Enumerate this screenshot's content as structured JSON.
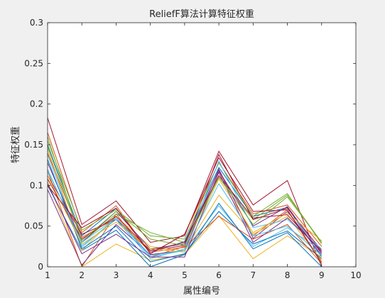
{
  "chart_data": {
    "type": "line",
    "title": "ReliefF算法计算特征权重",
    "xlabel": "属性编号",
    "ylabel": "特征权重",
    "xlim": [
      1,
      10
    ],
    "ylim": [
      0,
      0.3
    ],
    "xticks": [
      "1",
      "2",
      "3",
      "4",
      "5",
      "6",
      "7",
      "8",
      "9",
      "10"
    ],
    "yticks": [
      "0",
      "0.05",
      "0.1",
      "0.15",
      "0.2",
      "0.25",
      "0.3"
    ],
    "grid": false,
    "legend": "none",
    "x": [
      1,
      2,
      3,
      4,
      5,
      6,
      7,
      8,
      9
    ],
    "series": [
      {
        "color": "#A2142F",
        "values": [
          0.183,
          0.052,
          0.081,
          0.03,
          0.038,
          0.142,
          0.076,
          0.106,
          0.0
        ]
      },
      {
        "color": "#0072BD",
        "values": [
          0.15,
          0.038,
          0.072,
          0.018,
          0.031,
          0.122,
          0.062,
          0.073,
          0.012
        ]
      },
      {
        "color": "#D95319",
        "values": [
          0.118,
          0.0,
          0.065,
          0.012,
          0.025,
          0.118,
          0.038,
          0.07,
          0.006
        ]
      },
      {
        "color": "#EDB120",
        "values": [
          0.105,
          0.0,
          0.028,
          0.008,
          0.015,
          0.063,
          0.01,
          0.038,
          0.012
        ]
      },
      {
        "color": "#7E2F8E",
        "values": [
          0.095,
          0.002,
          0.052,
          0.015,
          0.02,
          0.12,
          0.035,
          0.068,
          0.014
        ]
      },
      {
        "color": "#77AC30",
        "values": [
          0.16,
          0.03,
          0.065,
          0.042,
          0.03,
          0.11,
          0.058,
          0.088,
          0.03
        ]
      },
      {
        "color": "#4DBEEE",
        "values": [
          0.138,
          0.024,
          0.06,
          0.012,
          0.02,
          0.075,
          0.025,
          0.048,
          0.02
        ]
      },
      {
        "color": "#A2142F",
        "values": [
          0.112,
          0.04,
          0.058,
          0.02,
          0.026,
          0.138,
          0.058,
          0.072,
          0.02
        ]
      },
      {
        "color": "#0072BD",
        "values": [
          0.1,
          0.02,
          0.045,
          0.0,
          0.015,
          0.078,
          0.022,
          0.042,
          0.0
        ]
      },
      {
        "color": "#D95319",
        "values": [
          0.165,
          0.042,
          0.075,
          0.016,
          0.04,
          0.128,
          0.065,
          0.076,
          0.025
        ]
      },
      {
        "color": "#EDB120",
        "values": [
          0.145,
          0.02,
          0.062,
          0.025,
          0.02,
          0.088,
          0.04,
          0.062,
          0.008
        ]
      },
      {
        "color": "#7E2F8E",
        "values": [
          0.128,
          0.03,
          0.068,
          0.022,
          0.028,
          0.118,
          0.05,
          0.074,
          0.016
        ]
      },
      {
        "color": "#77AC30",
        "values": [
          0.155,
          0.045,
          0.07,
          0.038,
          0.034,
          0.128,
          0.062,
          0.09,
          0.028
        ]
      },
      {
        "color": "#4DBEEE",
        "values": [
          0.12,
          0.026,
          0.058,
          0.01,
          0.022,
          0.13,
          0.048,
          0.058,
          0.022
        ]
      },
      {
        "color": "#A2142F",
        "values": [
          0.108,
          0.034,
          0.062,
          0.02,
          0.03,
          0.112,
          0.06,
          0.064,
          0.018
        ]
      },
      {
        "color": "#0072BD",
        "values": [
          0.132,
          0.022,
          0.05,
          0.006,
          0.016,
          0.068,
          0.028,
          0.044,
          0.01
        ]
      },
      {
        "color": "#D95319",
        "values": [
          0.14,
          0.036,
          0.06,
          0.018,
          0.024,
          0.062,
          0.034,
          0.052,
          0.004
        ]
      },
      {
        "color": "#EDB120",
        "values": [
          0.112,
          0.028,
          0.055,
          0.022,
          0.018,
          0.108,
          0.042,
          0.066,
          0.032
        ]
      },
      {
        "color": "#7E2F8E",
        "values": [
          0.102,
          0.016,
          0.04,
          0.012,
          0.012,
          0.116,
          0.03,
          0.06,
          0.02
        ]
      },
      {
        "color": "#77AC30",
        "values": [
          0.148,
          0.032,
          0.068,
          0.034,
          0.026,
          0.11,
          0.052,
          0.086,
          0.03
        ]
      },
      {
        "color": "#4DBEEE",
        "values": [
          0.118,
          0.03,
          0.06,
          0.014,
          0.02,
          0.102,
          0.038,
          0.05,
          0.014
        ]
      },
      {
        "color": "#A2142F",
        "values": [
          0.1,
          0.048,
          0.072,
          0.016,
          0.04,
          0.134,
          0.068,
          0.07,
          0.004
        ]
      }
    ]
  }
}
